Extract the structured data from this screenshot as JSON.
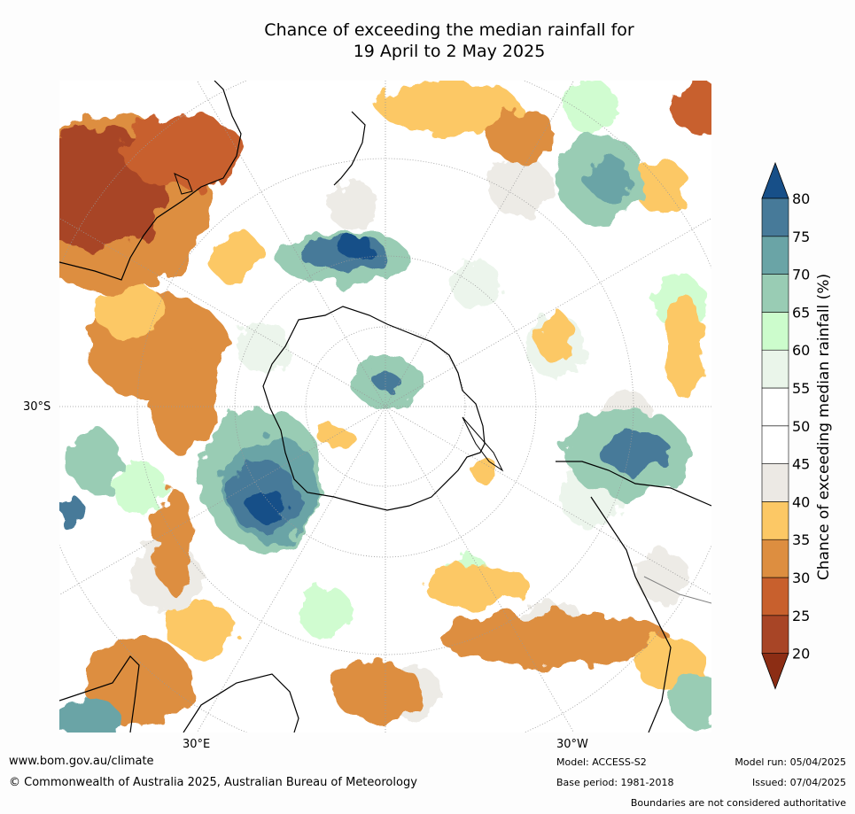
{
  "title": {
    "line1": "Chance of exceeding the median rainfall for",
    "line2": "19 April to 2 May 2025"
  },
  "map": {
    "lat_label_left": "30°S",
    "lon_label_bottom_left": "30°E",
    "lon_label_bottom_right": "30°W",
    "land_outline_color": "#000000",
    "boundary_color": "#808080"
  },
  "colorbar": {
    "label": "Chance of exceeding median rainfall (%)",
    "ticks": [
      "20",
      "25",
      "30",
      "35",
      "40",
      "45",
      "50",
      "55",
      "60",
      "65",
      "70",
      "75",
      "80"
    ],
    "bands": [
      {
        "range": "<20",
        "color": "#8c2d14"
      },
      {
        "range": "20-25",
        "color": "#a84526"
      },
      {
        "range": "25-30",
        "color": "#c8602d"
      },
      {
        "range": "30-35",
        "color": "#dd8e40"
      },
      {
        "range": "35-40",
        "color": "#fcc865"
      },
      {
        "range": "40-45",
        "color": "#ece9e4"
      },
      {
        "range": "45-50",
        "color": "#ffffff"
      },
      {
        "range": "50-55",
        "color": "#ffffff"
      },
      {
        "range": "55-60",
        "color": "#eaf5ea"
      },
      {
        "range": "60-65",
        "color": "#ccfccc"
      },
      {
        "range": "65-70",
        "color": "#99ccb4"
      },
      {
        "range": "70-75",
        "color": "#6aa4a6"
      },
      {
        "range": "75-80",
        "color": "#477a99"
      },
      {
        "range": ">80",
        "color": "#174f88"
      }
    ]
  },
  "footer": {
    "website": "www.bom.gov.au/climate",
    "copyright": "© Commonwealth of Australia 2025, Australian Bureau of Meteorology",
    "model": "Model: ACCESS-S2",
    "base_period": "Base period: 1981-2018",
    "model_run": "Model run: 05/04/2025",
    "issued": "Issued: 07/04/2025",
    "boundaries_note": "Boundaries are not considered authoritative"
  }
}
